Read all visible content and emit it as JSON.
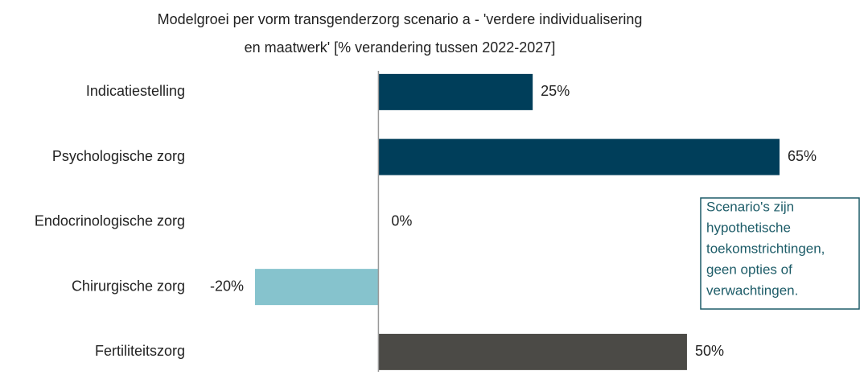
{
  "chart_data": {
    "type": "bar",
    "orientation": "horizontal",
    "title": [
      "Modelgroei per vorm transgenderzorg scenario a - 'verdere individualisering",
      "en maatwerk' [% verandering tussen 2022-2027]"
    ],
    "categories": [
      "Indicatiestelling",
      "Psychologische zorg",
      "Endocrinologische zorg",
      "Chirurgische zorg",
      "Fertiliteitszorg"
    ],
    "values": [
      25,
      65,
      0,
      -20,
      50
    ],
    "value_labels": [
      "25%",
      "65%",
      "0%",
      "-20%",
      "50%"
    ],
    "colors": [
      "#003e5a",
      "#003e5a",
      "#003e5a",
      "#86c3cd",
      "#4b4a46"
    ],
    "annotation": [
      "Scenario's zijn",
      "hypothetische",
      "toekomstrichtingen,",
      "geen opties of",
      "verwachtingen."
    ]
  }
}
